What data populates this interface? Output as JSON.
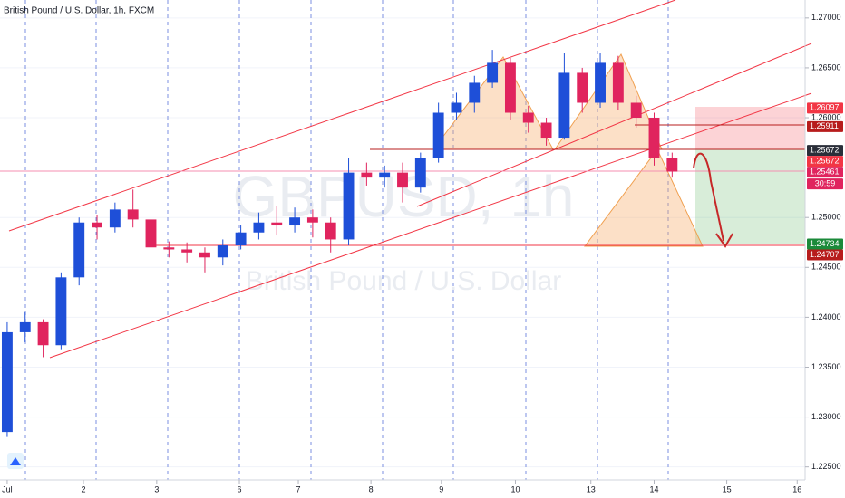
{
  "chart_data": {
    "type": "candlestick",
    "title": "British Pound / U.S. Dollar, 1h, FXCM",
    "watermark": "GBPUSD, 1h",
    "watermark_sub": "British Pound / U.S. Dollar",
    "up_color": "#1e4fd8",
    "down_color": "#e0245e",
    "x": [
      0,
      0.25,
      0.5,
      0.75,
      1,
      1.25,
      1.5,
      1.75,
      2,
      2.25,
      2.5,
      2.75,
      3,
      3.25,
      3.5,
      3.75,
      4,
      4.25,
      4.5,
      4.75,
      5,
      5.25,
      5.5,
      5.75,
      6,
      6.25,
      6.5,
      6.75,
      7,
      7.25,
      7.5,
      7.75,
      8,
      8.25,
      8.5,
      8.75,
      9,
      9.25
    ],
    "open": [
      1.2285,
      1.2385,
      1.2395,
      1.2372,
      1.244,
      1.2495,
      1.249,
      1.2508,
      1.2498,
      1.247,
      1.2468,
      1.2465,
      1.246,
      1.2472,
      1.2485,
      1.2495,
      1.2492,
      1.25,
      1.2495,
      1.2478,
      1.2545,
      1.254,
      1.2545,
      1.253,
      1.256,
      1.2605,
      1.2615,
      1.2635,
      1.2655,
      1.2605,
      1.2595,
      1.258,
      1.2645,
      1.2615,
      1.2655,
      1.2615,
      1.26,
      1.256
    ],
    "high": [
      1.2395,
      1.2405,
      1.2398,
      1.2445,
      1.25,
      1.2502,
      1.2515,
      1.2528,
      1.2502,
      1.2476,
      1.2475,
      1.247,
      1.2478,
      1.2492,
      1.2505,
      1.2512,
      1.251,
      1.2508,
      1.25,
      1.256,
      1.2555,
      1.2552,
      1.2555,
      1.2565,
      1.2615,
      1.2625,
      1.2642,
      1.2668,
      1.266,
      1.2612,
      1.26,
      1.2665,
      1.265,
      1.2665,
      1.2662,
      1.2622,
      1.2605,
      1.2565
    ],
    "low": [
      1.228,
      1.2375,
      1.236,
      1.2368,
      1.2432,
      1.2478,
      1.2485,
      1.249,
      1.2462,
      1.246,
      1.2455,
      1.2445,
      1.2452,
      1.2468,
      1.2478,
      1.2482,
      1.2485,
      1.248,
      1.2465,
      1.2472,
      1.2532,
      1.253,
      1.2515,
      1.2525,
      1.2555,
      1.2598,
      1.2605,
      1.263,
      1.2598,
      1.2585,
      1.2572,
      1.2578,
      1.2605,
      1.261,
      1.2608,
      1.259,
      1.2552,
      1.254
    ],
    "close": [
      1.2385,
      1.2395,
      1.2372,
      1.244,
      1.2495,
      1.249,
      1.2508,
      1.2498,
      1.247,
      1.2468,
      1.2465,
      1.246,
      1.2472,
      1.2485,
      1.2495,
      1.2492,
      1.25,
      1.2495,
      1.2478,
      1.2545,
      1.254,
      1.2545,
      1.253,
      1.256,
      1.2605,
      1.2615,
      1.2635,
      1.2655,
      1.2605,
      1.2595,
      1.258,
      1.2645,
      1.2615,
      1.2655,
      1.2615,
      1.26,
      1.256,
      1.2546
    ],
    "xlim": [
      -0.1,
      11.1
    ],
    "xticks": [
      {
        "value": 0,
        "label": "Jul"
      },
      {
        "value": 1.06,
        "label": "2"
      },
      {
        "value": 2.08,
        "label": "3"
      },
      {
        "value": 3.23,
        "label": "6"
      },
      {
        "value": 4.05,
        "label": "7"
      },
      {
        "value": 5.06,
        "label": "8"
      },
      {
        "value": 6.04,
        "label": "9"
      },
      {
        "value": 7.07,
        "label": "10"
      },
      {
        "value": 8.12,
        "label": "13"
      },
      {
        "value": 9.0,
        "label": "14"
      },
      {
        "value": 10.01,
        "label": "15"
      },
      {
        "value": 10.99,
        "label": "16"
      }
    ],
    "ylim": [
      1.2237,
      1.2718
    ],
    "yticks": [
      {
        "value": 1.27,
        "label": "1.27000"
      },
      {
        "value": 1.265,
        "label": "1.26500"
      },
      {
        "value": 1.26,
        "label": "1.26000"
      },
      {
        "value": 1.25,
        "label": "1.25000"
      },
      {
        "value": 1.245,
        "label": "1.24500"
      },
      {
        "value": 1.24,
        "label": "1.24000"
      },
      {
        "value": 1.235,
        "label": "1.23500"
      },
      {
        "value": 1.23,
        "label": "1.23000"
      },
      {
        "value": 1.225,
        "label": "1.22500"
      }
    ],
    "grid": true,
    "price_tags": [
      {
        "value": 1.26097,
        "label": "1.26097",
        "color": "#f23645"
      },
      {
        "value": 1.25911,
        "label": "1.25911",
        "color": "#b71c1c"
      },
      {
        "value": 1.25672,
        "label": "1.25672",
        "color": "#2a2e39"
      },
      {
        "value": 1.25672,
        "label": "1.25672",
        "color": "#f23645"
      },
      {
        "value": 1.25461,
        "label": "1.25461",
        "color": "#e0245e"
      },
      {
        "value": 1.24734,
        "label": "1.24734",
        "color": "#1b8a3a"
      },
      {
        "value": 1.24707,
        "label": "1.24707",
        "color": "#b71c1c"
      }
    ],
    "countdown": "30:59"
  }
}
